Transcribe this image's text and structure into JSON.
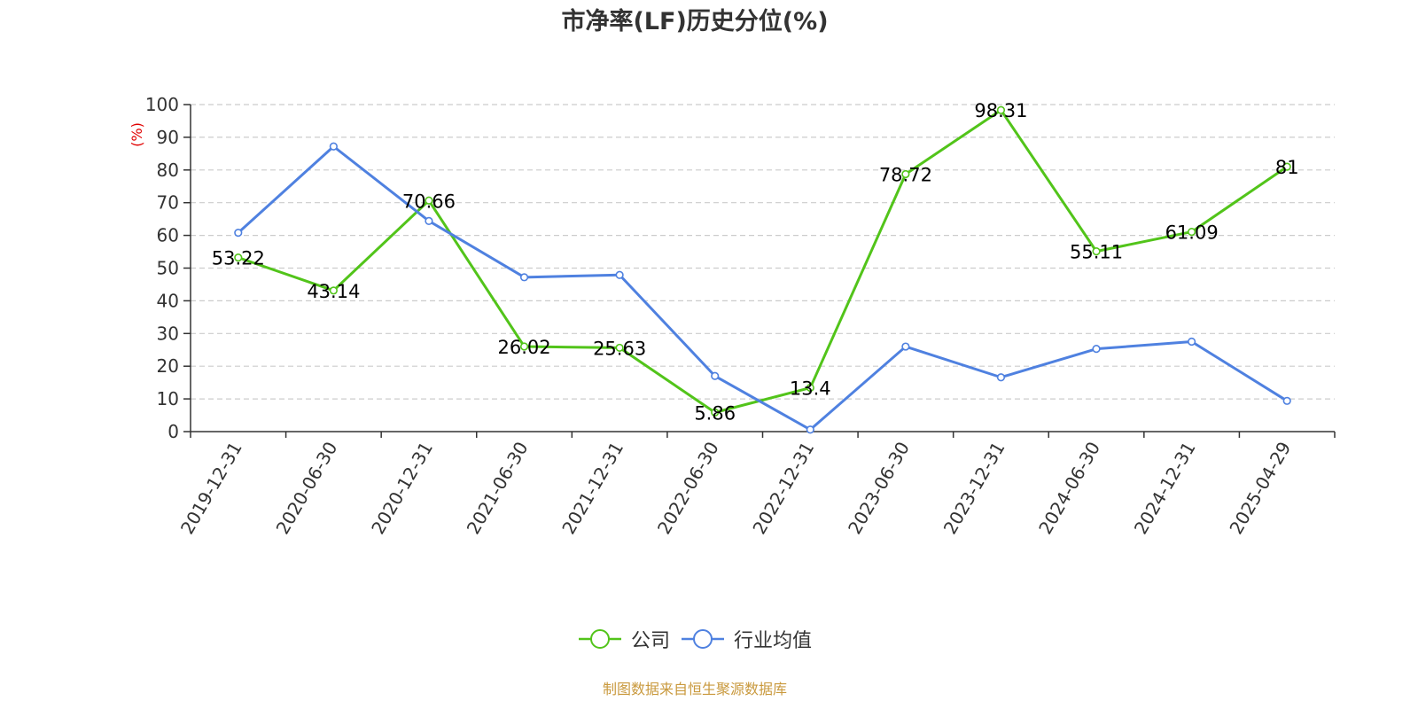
{
  "chart_data": {
    "type": "line",
    "title": "市净率(LF)历史分位(%)",
    "ylabel": "(%)",
    "ylim": [
      0,
      100
    ],
    "yticks": [
      0,
      10,
      20,
      30,
      40,
      50,
      60,
      70,
      80,
      90,
      100
    ],
    "categories": [
      "2019-12-31",
      "2020-06-30",
      "2020-12-31",
      "2021-06-30",
      "2021-12-31",
      "2022-06-30",
      "2022-12-31",
      "2023-06-30",
      "2023-12-31",
      "2024-06-30",
      "2024-12-31",
      "2025-04-29"
    ],
    "grid": true,
    "legend_position": "bottom-center",
    "series": [
      {
        "name": "公司",
        "color": "#52c41a",
        "show_labels": true,
        "values": [
          53.22,
          43.14,
          70.66,
          26.02,
          25.63,
          5.86,
          13.4,
          78.72,
          98.31,
          55.11,
          61.09,
          81
        ],
        "labels": [
          "53.22",
          "43.14",
          "70.66",
          "26.02",
          "25.63",
          "5.86",
          "13.4",
          "78.72",
          "98.31",
          "55.11",
          "61.09",
          "81"
        ]
      },
      {
        "name": "行业均值",
        "color": "#4f81e0",
        "show_labels": false,
        "values": [
          60.8,
          87.2,
          64.4,
          47.2,
          47.9,
          17.0,
          0.6,
          26.0,
          16.6,
          25.3,
          27.5,
          9.4
        ]
      }
    ]
  },
  "source_note": "制图数据来自恒生聚源数据库"
}
